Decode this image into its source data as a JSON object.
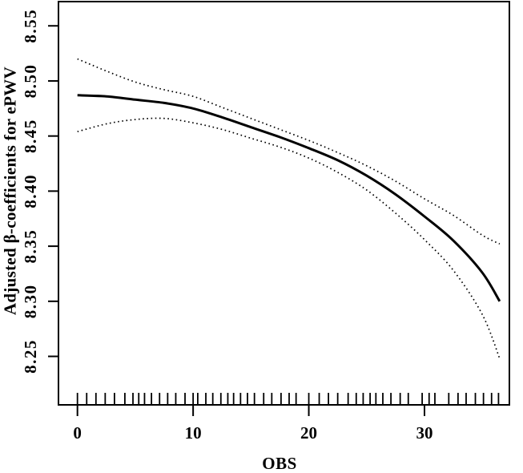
{
  "figure": {
    "background": "#ffffff",
    "foreground": "#000000"
  },
  "chart_data": {
    "type": "line",
    "title": "",
    "xlabel": "OBS",
    "ylabel": "Adjusted β-coefficients for ePWV",
    "xlim": [
      -1.64,
      37.34
    ],
    "ylim": [
      8.206,
      8.572
    ],
    "x_ticks": [
      {
        "value": 0,
        "label": "0"
      },
      {
        "value": 10,
        "label": "10"
      },
      {
        "value": 20,
        "label": "20"
      },
      {
        "value": 30,
        "label": "30"
      }
    ],
    "y_ticks": [
      {
        "value": 8.25,
        "label": "8.25"
      },
      {
        "value": 8.3,
        "label": "8.30"
      },
      {
        "value": 8.35,
        "label": "8.35"
      },
      {
        "value": 8.4,
        "label": "8.40"
      },
      {
        "value": 8.45,
        "label": "8.45"
      },
      {
        "value": 8.5,
        "label": "8.50"
      },
      {
        "value": 8.55,
        "label": "8.55"
      }
    ],
    "grid": false,
    "legend": "none",
    "x": [
      0,
      2.5,
      5,
      7.5,
      10,
      12.5,
      15,
      17.5,
      20,
      22.5,
      25,
      27.5,
      30,
      32.5,
      35,
      36.5
    ],
    "series": [
      {
        "name": "fitted-curve",
        "style": "solid",
        "stroke_width": 3,
        "y": [
          8.487,
          8.486,
          8.483,
          8.48,
          8.475,
          8.467,
          8.458,
          8.449,
          8.439,
          8.428,
          8.414,
          8.397,
          8.377,
          8.355,
          8.326,
          8.3
        ]
      },
      {
        "name": "upper-confidence-band",
        "style": "dotted",
        "stroke_width": 1.7,
        "y": [
          8.52,
          8.509,
          8.499,
          8.492,
          8.486,
          8.476,
          8.466,
          8.456,
          8.446,
          8.435,
          8.423,
          8.409,
          8.393,
          8.378,
          8.36,
          8.352
        ]
      },
      {
        "name": "lower-confidence-band",
        "style": "dotted",
        "stroke_width": 1.7,
        "y": [
          8.454,
          8.461,
          8.465,
          8.466,
          8.462,
          8.456,
          8.448,
          8.44,
          8.43,
          8.417,
          8.401,
          8.38,
          8.356,
          8.328,
          8.288,
          8.248
        ]
      }
    ],
    "rug_x": [
      0,
      0.8,
      1.6,
      2.4,
      3.2,
      4.1,
      4.8,
      5.3,
      5.8,
      6.4,
      7.1,
      7.8,
      8.5,
      9.3,
      10.0,
      10.4,
      11.1,
      11.7,
      12.4,
      13.0,
      13.5,
      14.1,
      14.7,
      15.3,
      16.1,
      16.8,
      17.6,
      18.3,
      18.9,
      20.0,
      20.9,
      21.7,
      22.5,
      23.4,
      24.1,
      24.7,
      25.3,
      25.8,
      26.4,
      27.1,
      27.9,
      28.6,
      29.8,
      30.4,
      30.9,
      32.1,
      32.9,
      33.6,
      34.4,
      35.1,
      35.8,
      36.4
    ]
  }
}
